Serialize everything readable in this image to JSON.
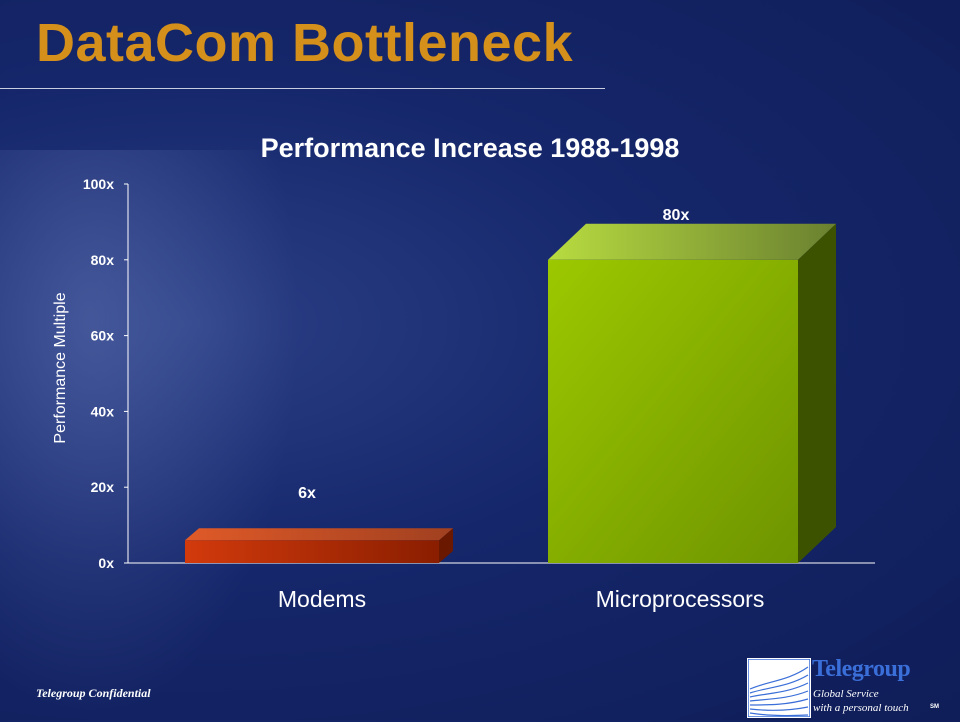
{
  "slide": {
    "title": "DataCom Bottleneck",
    "footer": "Telegroup Confidential"
  },
  "logo": {
    "name": "Telegroup",
    "tagline_line1": "Global Service",
    "tagline_line2": "with a personal touch",
    "mark": "SM"
  },
  "colors": {
    "title": "#d4901a",
    "modems_bar": "#c8300a",
    "microprocessors_bar": "#94c100",
    "logo_text": "#3a6ed8"
  },
  "chart_data": {
    "type": "bar",
    "title": "Performance Increase 1988-1998",
    "ylabel": "Performance Multiple",
    "xlabel": "",
    "categories": [
      "Modems",
      "Microprocessors"
    ],
    "values": [
      6,
      80
    ],
    "data_labels": [
      "6x",
      "80x"
    ],
    "ylim": [
      0,
      100
    ],
    "y_ticks": [
      0,
      20,
      40,
      60,
      80,
      100
    ],
    "y_tick_labels": [
      "0x",
      "20x",
      "40x",
      "60x",
      "80x",
      "100x"
    ],
    "grid": false,
    "legend": "none",
    "style": "3d"
  }
}
